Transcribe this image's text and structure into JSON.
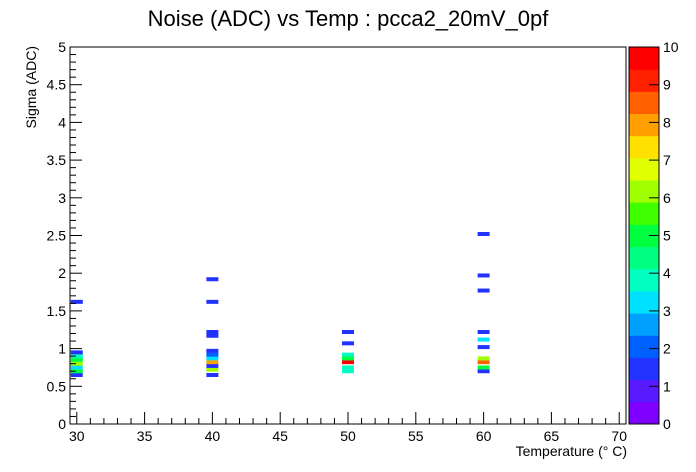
{
  "chart_data": {
    "type": "heatmap",
    "title": "Noise (ADC) vs Temp : pcca2_20mV_0pf",
    "xlabel": "Temperature (° C)",
    "ylabel": "Sigma (ADC)",
    "xlim": [
      29.5,
      70.5
    ],
    "ylim": [
      0,
      5
    ],
    "x_ticks": [
      "30",
      "35",
      "40",
      "45",
      "50",
      "55",
      "60",
      "65",
      "70"
    ],
    "y_ticks": [
      "0",
      "0.5",
      "1",
      "1.5",
      "2",
      "2.5",
      "3",
      "3.5",
      "4",
      "4.5",
      "5"
    ],
    "z_ticks": [
      "0",
      "1",
      "2",
      "3",
      "4",
      "5",
      "6",
      "7",
      "8",
      "9",
      "10"
    ],
    "zlim": [
      0,
      10
    ],
    "grid": false,
    "colorbar": "right",
    "cells": [
      {
        "x": 30,
        "y": 0.65,
        "count": 1
      },
      {
        "x": 30,
        "y": 0.7,
        "count": 5
      },
      {
        "x": 30,
        "y": 0.75,
        "count": 3
      },
      {
        "x": 30,
        "y": 0.8,
        "count": 6
      },
      {
        "x": 30,
        "y": 0.85,
        "count": 5
      },
      {
        "x": 30,
        "y": 0.9,
        "count": 4
      },
      {
        "x": 30,
        "y": 0.95,
        "count": 1
      },
      {
        "x": 30,
        "y": 1.62,
        "count": 1
      },
      {
        "x": 40,
        "y": 0.65,
        "count": 1
      },
      {
        "x": 40,
        "y": 0.72,
        "count": 6
      },
      {
        "x": 40,
        "y": 0.77,
        "count": 1
      },
      {
        "x": 40,
        "y": 0.82,
        "count": 8
      },
      {
        "x": 40,
        "y": 0.87,
        "count": 3
      },
      {
        "x": 40,
        "y": 0.92,
        "count": 2
      },
      {
        "x": 40,
        "y": 0.97,
        "count": 1
      },
      {
        "x": 40,
        "y": 1.17,
        "count": 1
      },
      {
        "x": 40,
        "y": 1.22,
        "count": 1
      },
      {
        "x": 40,
        "y": 1.62,
        "count": 1
      },
      {
        "x": 40,
        "y": 1.92,
        "count": 1
      },
      {
        "x": 50,
        "y": 0.7,
        "count": 4
      },
      {
        "x": 50,
        "y": 0.75,
        "count": 4
      },
      {
        "x": 50,
        "y": 0.82,
        "count": 10
      },
      {
        "x": 50,
        "y": 0.87,
        "count": 5
      },
      {
        "x": 50,
        "y": 0.92,
        "count": 4
      },
      {
        "x": 50,
        "y": 1.07,
        "count": 1
      },
      {
        "x": 50,
        "y": 1.22,
        "count": 1
      },
      {
        "x": 60,
        "y": 0.7,
        "count": 1
      },
      {
        "x": 60,
        "y": 0.75,
        "count": 5
      },
      {
        "x": 60,
        "y": 0.82,
        "count": 9
      },
      {
        "x": 60,
        "y": 0.87,
        "count": 6
      },
      {
        "x": 60,
        "y": 1.02,
        "count": 1
      },
      {
        "x": 60,
        "y": 1.12,
        "count": 3
      },
      {
        "x": 60,
        "y": 1.22,
        "count": 1
      },
      {
        "x": 60,
        "y": 1.77,
        "count": 1
      },
      {
        "x": 60,
        "y": 1.97,
        "count": 1
      },
      {
        "x": 60,
        "y": 2.52,
        "count": 1
      }
    ],
    "palette": [
      "#7f00ff",
      "#5a1aff",
      "#2233ff",
      "#0060ff",
      "#00a0ff",
      "#00e0ff",
      "#00ffc0",
      "#00ff80",
      "#00ff40",
      "#40ff00",
      "#a0ff00",
      "#e0ff00",
      "#ffe000",
      "#ffa000",
      "#ff6000",
      "#ff2000",
      "#ff0000"
    ]
  }
}
